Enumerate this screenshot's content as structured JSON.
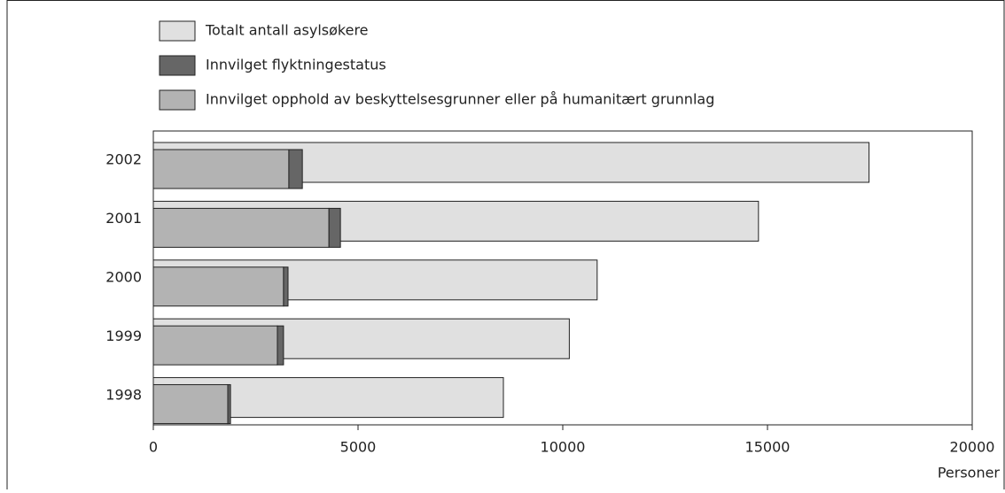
{
  "chart_data": {
    "type": "bar",
    "orientation": "horizontal",
    "xlabel": "Personer",
    "categories": [
      "1998",
      "1999",
      "2000",
      "2001",
      "2002"
    ],
    "series": [
      {
        "name": "Totalt antall asylsøkere",
        "color": "#e0e0e0",
        "values": [
          8550,
          10160,
          10840,
          14780,
          17480
        ]
      },
      {
        "name": "Innvilget flyktningestatus",
        "color": "#666666",
        "values": [
          65,
          150,
          110,
          280,
          330
        ]
      },
      {
        "name": "Innvilget opphold av beskyttelsesgrunner eller på humanitært grunnlag",
        "color": "#b3b3b3",
        "values": [
          1820,
          3030,
          3180,
          4290,
          3310
        ]
      }
    ],
    "xlim": [
      0,
      20000
    ],
    "xticks": [
      0,
      5000,
      10000,
      15000,
      20000
    ],
    "grid": false
  }
}
